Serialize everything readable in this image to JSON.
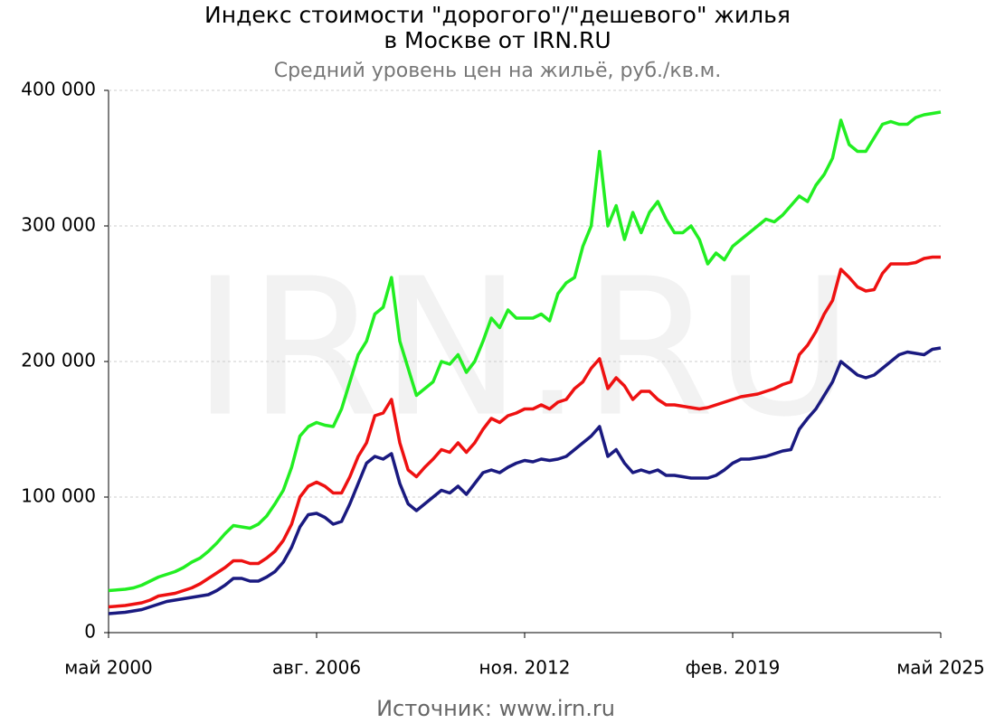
{
  "chart_data": {
    "type": "line",
    "title": [
      "Индекс стоимости \"дорогого\"/\"дешевого\" жилья",
      "в Москве от IRN.RU"
    ],
    "subtitle": "Средний уровень цен на жильё, руб./кв.м.",
    "source": "Источник: www.irn.ru",
    "watermark": "IRN.RU",
    "grid": true,
    "x": [
      "2000-05",
      "2000-08",
      "2000-11",
      "2001-02",
      "2001-05",
      "2001-08",
      "2001-11",
      "2002-02",
      "2002-05",
      "2002-08",
      "2002-11",
      "2003-02",
      "2003-05",
      "2003-08",
      "2003-11",
      "2004-02",
      "2004-05",
      "2004-08",
      "2004-11",
      "2005-02",
      "2005-05",
      "2005-08",
      "2005-11",
      "2006-02",
      "2006-05",
      "2006-08",
      "2006-11",
      "2007-02",
      "2007-05",
      "2007-08",
      "2007-11",
      "2008-02",
      "2008-05",
      "2008-08",
      "2008-11",
      "2009-02",
      "2009-05",
      "2009-08",
      "2009-11",
      "2010-02",
      "2010-05",
      "2010-08",
      "2010-11",
      "2011-02",
      "2011-05",
      "2011-08",
      "2011-11",
      "2012-02",
      "2012-05",
      "2012-08",
      "2012-11",
      "2013-02",
      "2013-05",
      "2013-08",
      "2013-11",
      "2014-02",
      "2014-05",
      "2014-08",
      "2014-11",
      "2015-02",
      "2015-05",
      "2015-08",
      "2015-11",
      "2016-02",
      "2016-05",
      "2016-08",
      "2016-11",
      "2017-02",
      "2017-05",
      "2017-08",
      "2017-11",
      "2018-02",
      "2018-05",
      "2018-08",
      "2018-11",
      "2019-02",
      "2019-05",
      "2019-08",
      "2019-11",
      "2020-02",
      "2020-05",
      "2020-08",
      "2020-11",
      "2021-02",
      "2021-05",
      "2021-08",
      "2021-11",
      "2022-02",
      "2022-05",
      "2022-08",
      "2022-11",
      "2023-02",
      "2023-05",
      "2023-08",
      "2023-11",
      "2024-02",
      "2024-05",
      "2024-08",
      "2024-11",
      "2025-02",
      "2025-05"
    ],
    "xlim": [
      "2000-05",
      "2025-05"
    ],
    "xticks": [
      {
        "value": "2000-05",
        "label": "май 2000"
      },
      {
        "value": "2006-08",
        "label": "авг. 2006"
      },
      {
        "value": "2012-11",
        "label": "ноя. 2012"
      },
      {
        "value": "2019-02",
        "label": "фев. 2019"
      },
      {
        "value": "2025-05",
        "label": "май 2025"
      }
    ],
    "ylim": [
      0,
      400000
    ],
    "yticks": [
      0,
      {
        "value": 100000,
        "label": "100 000"
      },
      {
        "value": 200000,
        "label": "200 000"
      },
      {
        "value": 300000,
        "label": "300 000"
      },
      {
        "value": 400000,
        "label": "400 000"
      }
    ],
    "series": [
      {
        "color": "#22ee22",
        "values": [
          31000,
          31500,
          32000,
          33000,
          35000,
          38000,
          41000,
          43000,
          45000,
          48000,
          52000,
          55000,
          60000,
          66000,
          73000,
          79000,
          78000,
          77000,
          80000,
          86000,
          95000,
          105000,
          122000,
          145000,
          152000,
          155000,
          153000,
          152000,
          165000,
          185000,
          205000,
          215000,
          235000,
          240000,
          262000,
          215000,
          195000,
          175000,
          180000,
          185000,
          200000,
          198000,
          205000,
          192000,
          200000,
          215000,
          232000,
          225000,
          238000,
          232000,
          232000,
          232000,
          235000,
          230000,
          250000,
          258000,
          262000,
          285000,
          300000,
          355000,
          300000,
          315000,
          290000,
          310000,
          295000,
          310000,
          318000,
          305000,
          295000,
          295000,
          300000,
          290000,
          272000,
          280000,
          275000,
          285000,
          290000,
          295000,
          300000,
          305000,
          303000,
          308000,
          315000,
          322000,
          318000,
          330000,
          338000,
          350000,
          378000,
          360000,
          355000,
          355000,
          365000,
          375000,
          377000,
          375000,
          375000,
          380000,
          382000,
          383000,
          384000
        ]
      },
      {
        "color": "#ee1111",
        "values": [
          19000,
          19500,
          20000,
          21000,
          22000,
          24000,
          27000,
          28000,
          29000,
          31000,
          33000,
          36000,
          40000,
          44000,
          48000,
          53000,
          53000,
          51000,
          51000,
          55000,
          60000,
          68000,
          80000,
          100000,
          108000,
          111000,
          108000,
          103000,
          103000,
          115000,
          130000,
          140000,
          160000,
          162000,
          172000,
          140000,
          120000,
          115000,
          122000,
          128000,
          135000,
          133000,
          140000,
          133000,
          140000,
          150000,
          158000,
          155000,
          160000,
          162000,
          165000,
          165000,
          168000,
          165000,
          170000,
          172000,
          180000,
          185000,
          195000,
          202000,
          180000,
          188000,
          182000,
          172000,
          178000,
          178000,
          172000,
          168000,
          168000,
          167000,
          166000,
          165000,
          166000,
          168000,
          170000,
          172000,
          174000,
          175000,
          176000,
          178000,
          180000,
          183000,
          185000,
          205000,
          212000,
          222000,
          235000,
          245000,
          268000,
          262000,
          255000,
          252000,
          253000,
          265000,
          272000,
          272000,
          272000,
          273000,
          276000,
          277000,
          277000
        ]
      },
      {
        "color": "#1a1a80",
        "values": [
          14000,
          14500,
          15000,
          16000,
          17000,
          19000,
          21000,
          23000,
          24000,
          25000,
          26000,
          27000,
          28000,
          31000,
          35000,
          40000,
          40000,
          38000,
          38000,
          41000,
          45000,
          52000,
          63000,
          78000,
          87000,
          88000,
          85000,
          80000,
          82000,
          95000,
          110000,
          125000,
          130000,
          128000,
          132000,
          110000,
          95000,
          90000,
          95000,
          100000,
          105000,
          103000,
          108000,
          102000,
          110000,
          118000,
          120000,
          118000,
          122000,
          125000,
          127000,
          126000,
          128000,
          127000,
          128000,
          130000,
          135000,
          140000,
          145000,
          152000,
          130000,
          135000,
          125000,
          118000,
          120000,
          118000,
          120000,
          116000,
          116000,
          115000,
          114000,
          114000,
          114000,
          116000,
          120000,
          125000,
          128000,
          128000,
          129000,
          130000,
          132000,
          134000,
          135000,
          150000,
          158000,
          165000,
          175000,
          185000,
          200000,
          195000,
          190000,
          188000,
          190000,
          195000,
          200000,
          205000,
          207000,
          206000,
          205000,
          209000,
          210000
        ]
      }
    ]
  }
}
